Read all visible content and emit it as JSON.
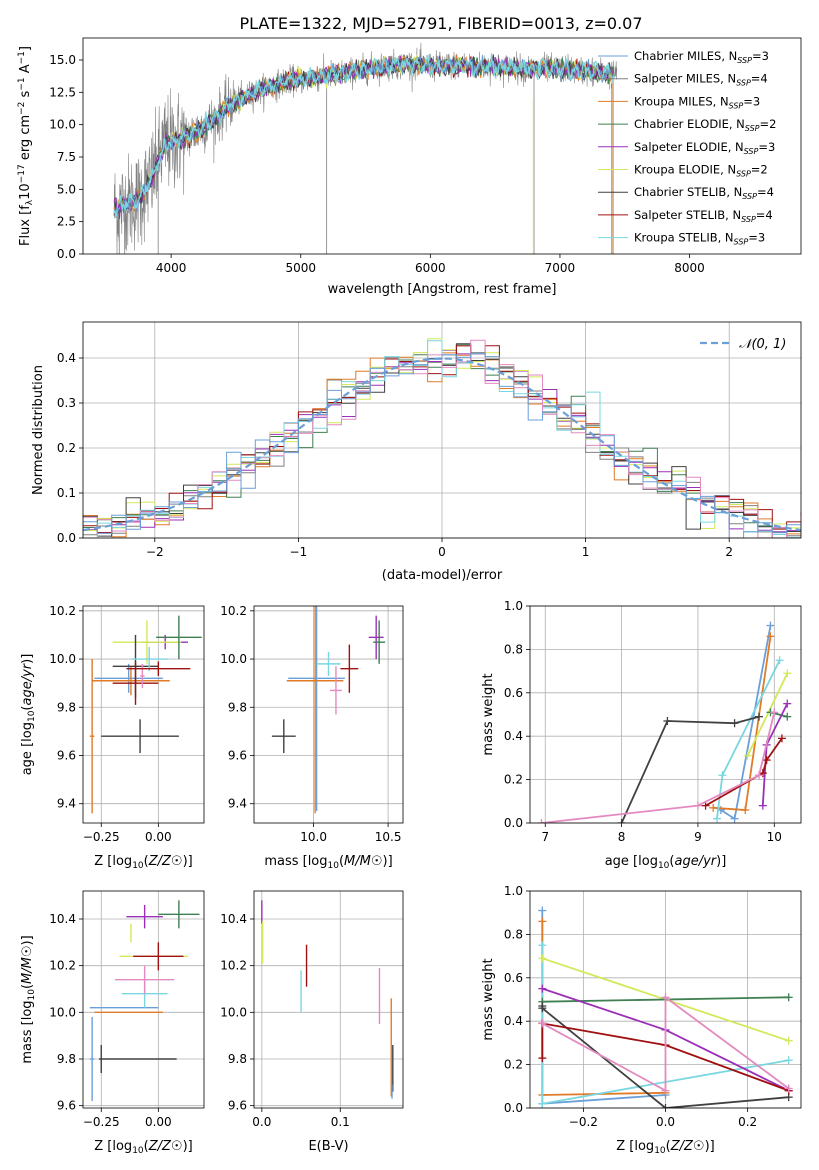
{
  "figure": {
    "title": "PLATE=1322, MJD=52791, FIBERID=0013, z=0.07"
  },
  "colors": {
    "chabrier_miles": "#6a9fd8",
    "salpeter_miles": "#808080",
    "kroupa_miles": "#e07b27",
    "chabrier_elodie": "#3f7f52",
    "salpeter_elodie": "#9b30b8",
    "kroupa_elodie": "#d4e85a",
    "chabrier_stelib": "#404040",
    "salpeter_stelib": "#a01010",
    "kroupa_stelib": "#7ad6e0",
    "pink": "#e38bc0"
  },
  "chart_data": [
    {
      "id": "spectrum",
      "type": "line",
      "xlabel": "wavelength [Angstrom, rest frame]",
      "ylabel": "Flux [f",
      "ylabel_parts": [
        "Flux [f",
        "λ",
        "10",
        "−17",
        " erg cm",
        "−2",
        " s",
        "−1",
        " A",
        "−1",
        "]"
      ],
      "xlim": [
        3320,
        8860
      ],
      "ylim": [
        0,
        16.7
      ],
      "xticks": [
        "4000",
        "5000",
        "6000",
        "7000",
        "8000"
      ],
      "yticks": [
        "0.0",
        "2.5",
        "5.0",
        "7.5",
        "10.0",
        "12.5",
        "15.0"
      ],
      "legend_position": "right",
      "legend": [
        {
          "text": "Chabrier MILES, N",
          "sub": "SSP",
          "tail": "=3",
          "color": "chabrier_miles"
        },
        {
          "text": "Salpeter MILES, N",
          "sub": "SSP",
          "tail": "=4",
          "color": "salpeter_miles"
        },
        {
          "text": "Kroupa MILES, N",
          "sub": "SSP",
          "tail": "=3",
          "color": "kroupa_miles"
        },
        {
          "text": "Chabrier ELODIE, N",
          "sub": "SSP",
          "tail": "=2",
          "color": "chabrier_elodie"
        },
        {
          "text": "Salpeter ELODIE, N",
          "sub": "SSP",
          "tail": "=3",
          "color": "salpeter_elodie"
        },
        {
          "text": "Kroupa ELODIE, N",
          "sub": "SSP",
          "tail": "=2",
          "color": "kroupa_elodie"
        },
        {
          "text": "Chabrier STELIB, N",
          "sub": "SSP",
          "tail": "=4",
          "color": "chabrier_stelib"
        },
        {
          "text": "Salpeter STELIB, N",
          "sub": "SSP",
          "tail": "=4",
          "color": "salpeter_stelib"
        },
        {
          "text": "Kroupa STELIB, N",
          "sub": "SSP",
          "tail": "=3",
          "color": "kroupa_stelib"
        }
      ],
      "model_curve": {
        "x": [
          3550,
          3650,
          3750,
          3850,
          3950,
          4050,
          4150,
          4250,
          4350,
          4450,
          4550,
          4650,
          4750,
          4850,
          4950,
          5050,
          5150,
          5250,
          5350,
          5450,
          5550,
          5650,
          5750,
          5850,
          5950,
          6050,
          6150,
          6250,
          6350,
          6450,
          6550,
          6650,
          6750,
          6850,
          6950,
          7050,
          7150,
          7250,
          7350,
          7420
        ],
        "y": [
          3.5,
          3.8,
          4.2,
          5.8,
          8.5,
          8.8,
          9.2,
          9.8,
          10.5,
          11.6,
          12.0,
          12.5,
          12.9,
          13.2,
          13.5,
          13.5,
          13.7,
          13.9,
          14.0,
          14.2,
          14.4,
          14.5,
          14.6,
          14.7,
          14.6,
          14.5,
          14.6,
          14.6,
          14.5,
          14.5,
          14.4,
          14.4,
          14.3,
          14.4,
          14.3,
          14.3,
          14.2,
          14.1,
          14.0,
          13.9
        ]
      },
      "observed_x_range": [
        3560,
        7440
      ]
    },
    {
      "id": "residuals",
      "type": "histogram",
      "xlabel": "(data-model)/error",
      "ylabel": "Normed distribution",
      "xlim": [
        -2.5,
        2.5
      ],
      "ylim": [
        0,
        0.48
      ],
      "xticks": [
        "−2",
        "−1",
        "0",
        "1",
        "2"
      ],
      "xtick_values": [
        -2,
        -1,
        0,
        1,
        2
      ],
      "yticks": [
        "0.0",
        "0.1",
        "0.2",
        "0.3",
        "0.4"
      ],
      "ytick_values": [
        0,
        0.1,
        0.2,
        0.3,
        0.4
      ],
      "bin_width": 0.1,
      "legend": [
        {
          "text": "𝒩(0, 1)",
          "color": "chabrier_miles",
          "style": "dashed"
        }
      ],
      "reference_curve": "normal(0,1)"
    },
    {
      "id": "age_vs_Z",
      "type": "errorbar",
      "xlabel": "Z [log10(Z/Z☉)]",
      "ylabel": "age [log10(age/yr)]",
      "xlim": [
        -0.33,
        0.2
      ],
      "ylim": [
        9.32,
        10.22
      ],
      "xticks": [
        "−0.25",
        "0.00"
      ],
      "xtick_values": [
        -0.25,
        0.0
      ],
      "yticks": [
        "9.4",
        "9.6",
        "9.8",
        "10.0",
        "10.2"
      ],
      "ytick_values": [
        9.4,
        9.6,
        9.8,
        10.0,
        10.2
      ],
      "points": [
        {
          "x": -0.13,
          "y": 9.92,
          "xerr": 0.15,
          "yerr": 0.06,
          "color": "chabrier_miles"
        },
        {
          "x": -0.29,
          "y": 9.68,
          "xerr": 0.01,
          "yerr": 0.32,
          "color": "kroupa_miles"
        },
        {
          "x": -0.12,
          "y": 9.91,
          "xerr": 0.17,
          "yerr": 0.06,
          "color": "kroupa_miles"
        },
        {
          "x": 0.03,
          "y": 10.07,
          "xerr": 0.1,
          "yerr": 0.03,
          "color": "salpeter_elodie"
        },
        {
          "x": -0.05,
          "y": 10.07,
          "xerr": 0.15,
          "yerr": 0.09,
          "color": "kroupa_elodie"
        },
        {
          "x": 0.09,
          "y": 10.09,
          "xerr": 0.1,
          "yerr": 0.09,
          "color": "chabrier_elodie"
        },
        {
          "x": -0.1,
          "y": 9.97,
          "xerr": 0.1,
          "yerr": 0.13,
          "color": "chabrier_stelib"
        },
        {
          "x": -0.1,
          "y": 9.9,
          "xerr": 0.1,
          "yerr": 0.09,
          "color": "salpeter_stelib"
        },
        {
          "x": -0.07,
          "y": 9.93,
          "xerr": 0.01,
          "yerr": 0.05,
          "color": "pink"
        },
        {
          "x": -0.04,
          "y": 10.0,
          "xerr": 0.08,
          "yerr": 0.05,
          "color": "kroupa_stelib"
        },
        {
          "x": 0.0,
          "y": 9.96,
          "xerr": 0.14,
          "yerr": 0.03,
          "color": "salpeter_stelib"
        },
        {
          "x": -0.08,
          "y": 9.68,
          "xerr": 0.17,
          "yerr": 0.07,
          "color": "chabrier_stelib"
        }
      ]
    },
    {
      "id": "age_vs_mass",
      "type": "errorbar",
      "xlabel": "mass [log10(M/M☉)]",
      "ylabel": "",
      "xlim": [
        9.6,
        10.6
      ],
      "ylim": [
        9.32,
        10.22
      ],
      "xticks": [
        "10.0",
        "10.5"
      ],
      "xtick_values": [
        10.0,
        10.5
      ],
      "yticks": [
        "9.4",
        "9.6",
        "9.8",
        "10.0",
        "10.2"
      ],
      "ytick_values": [
        9.4,
        9.6,
        9.8,
        10.0,
        10.2
      ],
      "points": [
        {
          "x": 10.02,
          "y": 9.92,
          "xerr": 0.19,
          "yerr": 0.55,
          "color": "chabrier_miles"
        },
        {
          "x": 10.01,
          "y": 9.91,
          "xerr": 0.19,
          "yerr": 0.55,
          "color": "kroupa_miles"
        },
        {
          "x": 9.8,
          "y": 9.68,
          "xerr": 0.08,
          "yerr": 0.07,
          "color": "chabrier_stelib"
        },
        {
          "x": 10.1,
          "y": 9.98,
          "xerr": 0.08,
          "yerr": 0.05,
          "color": "kroupa_stelib"
        },
        {
          "x": 10.24,
          "y": 9.96,
          "xerr": 0.06,
          "yerr": 0.1,
          "color": "salpeter_stelib"
        },
        {
          "x": 10.15,
          "y": 9.87,
          "xerr": 0.04,
          "yerr": 0.1,
          "color": "pink"
        },
        {
          "x": 10.42,
          "y": 10.09,
          "xerr": 0.05,
          "yerr": 0.09,
          "color": "salpeter_elodie"
        },
        {
          "x": 10.44,
          "y": 10.07,
          "xerr": 0.04,
          "yerr": 0.09,
          "color": "chabrier_elodie"
        }
      ]
    },
    {
      "id": "weight_vs_age",
      "type": "line",
      "xlabel": "age [log10(age/yr)]",
      "ylabel": "mass weight",
      "xlim": [
        6.8,
        10.35
      ],
      "ylim": [
        0,
        1
      ],
      "xticks": [
        "7",
        "8",
        "9",
        "10"
      ],
      "xtick_values": [
        7,
        8,
        9,
        10
      ],
      "yticks": [
        "0.0",
        "0.2",
        "0.4",
        "0.6",
        "0.8",
        "1.0"
      ],
      "ytick_values": [
        0,
        0.2,
        0.4,
        0.6,
        0.8,
        1.0
      ],
      "series": [
        {
          "color": "chabrier_miles",
          "x": [
            9.3,
            9.48,
            9.95
          ],
          "y": [
            0.06,
            0.02,
            0.91
          ]
        },
        {
          "color": "kroupa_miles",
          "x": [
            9.2,
            9.62,
            9.95
          ],
          "y": [
            0.07,
            0.06,
            0.86
          ]
        },
        {
          "color": "kroupa_stelib",
          "x": [
            9.25,
            9.32,
            10.07
          ],
          "y": [
            0.02,
            0.22,
            0.75
          ]
        },
        {
          "color": "kroupa_elodie",
          "x": [
            9.65,
            10.17
          ],
          "y": [
            0.31,
            0.69
          ]
        },
        {
          "color": "chabrier_elodie",
          "x": [
            9.95,
            10.17
          ],
          "y": [
            0.51,
            0.49
          ]
        },
        {
          "color": "salpeter_elodie",
          "x": [
            9.85,
            9.9,
            10.17
          ],
          "y": [
            0.08,
            0.36,
            0.55
          ]
        },
        {
          "color": "chabrier_stelib",
          "x": [
            8.0,
            8.6,
            9.48,
            9.8
          ],
          "y": [
            0.0,
            0.47,
            0.46,
            0.49
          ]
        },
        {
          "color": "salpeter_stelib",
          "x": [
            9.1,
            9.85,
            9.9,
            10.1
          ],
          "y": [
            0.08,
            0.23,
            0.29,
            0.39
          ]
        },
        {
          "color": "pink",
          "x": [
            6.95,
            9.0,
            9.8,
            10.0
          ],
          "y": [
            0.0,
            0.08,
            0.22,
            0.51
          ]
        }
      ]
    },
    {
      "id": "mass_vs_Z",
      "type": "errorbar",
      "xlabel": "Z [log10(Z/Z☉)]",
      "ylabel": "mass [log10(M/M☉)]",
      "xlim": [
        -0.33,
        0.2
      ],
      "ylim": [
        9.59,
        10.52
      ],
      "xticks": [
        "−0.25",
        "0.00"
      ],
      "xtick_values": [
        -0.25,
        0.0
      ],
      "yticks": [
        "9.6",
        "9.8",
        "10.0",
        "10.2",
        "10.4"
      ],
      "ytick_values": [
        9.6,
        9.8,
        10.0,
        10.2,
        10.4
      ],
      "points": [
        {
          "x": -0.15,
          "y": 10.02,
          "xerr": 0.15,
          "yerr": 0.0,
          "color": "chabrier_miles"
        },
        {
          "x": -0.29,
          "y": 9.8,
          "xerr": 0.01,
          "yerr": 0.18,
          "color": "chabrier_miles"
        },
        {
          "x": -0.13,
          "y": 10.0,
          "xerr": 0.15,
          "yerr": 0.0,
          "color": "kroupa_miles"
        },
        {
          "x": -0.25,
          "y": 9.8,
          "xerr": 0.0,
          "yerr": 0.06,
          "color": "chabrier_stelib"
        },
        {
          "x": -0.09,
          "y": 9.8,
          "xerr": 0.17,
          "yerr": 0.0,
          "color": "chabrier_stelib"
        },
        {
          "x": -0.06,
          "y": 10.08,
          "xerr": 0.1,
          "yerr": 0.06,
          "color": "kroupa_stelib"
        },
        {
          "x": -0.06,
          "y": 10.14,
          "xerr": 0.13,
          "yerr": 0.06,
          "color": "pink"
        },
        {
          "x": -0.02,
          "y": 10.24,
          "xerr": 0.15,
          "yerr": 0.0,
          "color": "kroupa_elodie"
        },
        {
          "x": 0.0,
          "y": 10.24,
          "xerr": 0.11,
          "yerr": 0.06,
          "color": "salpeter_stelib"
        },
        {
          "x": -0.06,
          "y": 10.41,
          "xerr": 0.08,
          "yerr": 0.05,
          "color": "salpeter_elodie"
        },
        {
          "x": 0.09,
          "y": 10.42,
          "xerr": 0.09,
          "yerr": 0.06,
          "color": "chabrier_elodie"
        },
        {
          "x": -0.12,
          "y": 10.34,
          "xerr": 0.0,
          "yerr": 0.04,
          "color": "kroupa_elodie"
        }
      ]
    },
    {
      "id": "mass_vs_EBV",
      "type": "errorbar",
      "xlabel": "E(B-V)",
      "ylabel": "",
      "xlim": [
        -0.01,
        0.18
      ],
      "ylim": [
        9.59,
        10.52
      ],
      "xticks": [
        "0.0",
        "0.1"
      ],
      "xtick_values": [
        0.0,
        0.1
      ],
      "yticks": [
        "9.6",
        "9.8",
        "10.0",
        "10.2",
        "10.4"
      ],
      "ytick_values": [
        9.6,
        9.8,
        10.0,
        10.2,
        10.4
      ],
      "points": [
        {
          "x": 0.0,
          "y": 10.43,
          "xerr": 0.0,
          "yerr": 0.05,
          "color": "salpeter_elodie"
        },
        {
          "x": 0.001,
          "y": 10.3,
          "xerr": 0.0,
          "yerr": 0.09,
          "color": "kroupa_elodie"
        },
        {
          "x": 0.05,
          "y": 10.09,
          "xerr": 0.0,
          "yerr": 0.09,
          "color": "kroupa_stelib"
        },
        {
          "x": 0.057,
          "y": 10.2,
          "xerr": 0.0,
          "yerr": 0.09,
          "color": "salpeter_stelib"
        },
        {
          "x": 0.15,
          "y": 10.07,
          "xerr": 0.0,
          "yerr": 0.12,
          "color": "pink"
        },
        {
          "x": 0.165,
          "y": 9.85,
          "xerr": 0.0,
          "yerr": 0.21,
          "color": "kroupa_miles"
        },
        {
          "x": 0.167,
          "y": 9.76,
          "xerr": 0.0,
          "yerr": 0.1,
          "color": "chabrier_stelib"
        },
        {
          "x": 0.166,
          "y": 9.66,
          "xerr": 0.0,
          "yerr": 0.03,
          "color": "chabrier_miles"
        }
      ]
    },
    {
      "id": "weight_vs_Z",
      "type": "line",
      "xlabel": "Z [log10(Z/Z☉)]",
      "ylabel": "mass weight",
      "xlim": [
        -0.33,
        0.33
      ],
      "ylim": [
        0,
        1
      ],
      "xticks": [
        "−0.2",
        "0.0",
        "0.2"
      ],
      "xtick_values": [
        -0.2,
        0.0,
        0.2
      ],
      "yticks": [
        "0.0",
        "0.2",
        "0.4",
        "0.6",
        "0.8",
        "1.0"
      ],
      "ytick_values": [
        0,
        0.2,
        0.4,
        0.6,
        0.8,
        1.0
      ],
      "series": [
        {
          "color": "chabrier_miles",
          "x": [
            -0.3,
            -0.3,
            0.0
          ],
          "y": [
            0.91,
            0.02,
            0.06
          ]
        },
        {
          "color": "kroupa_miles",
          "x": [
            -0.3,
            -0.3,
            0.0
          ],
          "y": [
            0.86,
            0.06,
            0.07
          ]
        },
        {
          "color": "kroupa_stelib",
          "x": [
            -0.3,
            -0.3,
            0.3
          ],
          "y": [
            0.75,
            0.02,
            0.22
          ]
        },
        {
          "color": "kroupa_elodie",
          "x": [
            -0.3,
            0.3
          ],
          "y": [
            0.69,
            0.31
          ]
        },
        {
          "color": "chabrier_elodie",
          "x": [
            -0.3,
            0.3
          ],
          "y": [
            0.49,
            0.51
          ]
        },
        {
          "color": "salpeter_elodie",
          "x": [
            -0.3,
            0.0,
            0.3
          ],
          "y": [
            0.55,
            0.36,
            0.08
          ]
        },
        {
          "color": "chabrier_stelib",
          "x": [
            -0.3,
            -0.3,
            0.0,
            0.3
          ],
          "y": [
            0.47,
            0.46,
            0.0,
            0.05
          ]
        },
        {
          "color": "salpeter_stelib",
          "x": [
            -0.3,
            -0.3,
            0.0,
            0.3
          ],
          "y": [
            0.23,
            0.39,
            0.29,
            0.08
          ]
        },
        {
          "color": "pink",
          "x": [
            -0.3,
            0.0,
            0.0,
            0.3
          ],
          "y": [
            0.39,
            0.08,
            0.51,
            0.09
          ]
        }
      ]
    }
  ]
}
